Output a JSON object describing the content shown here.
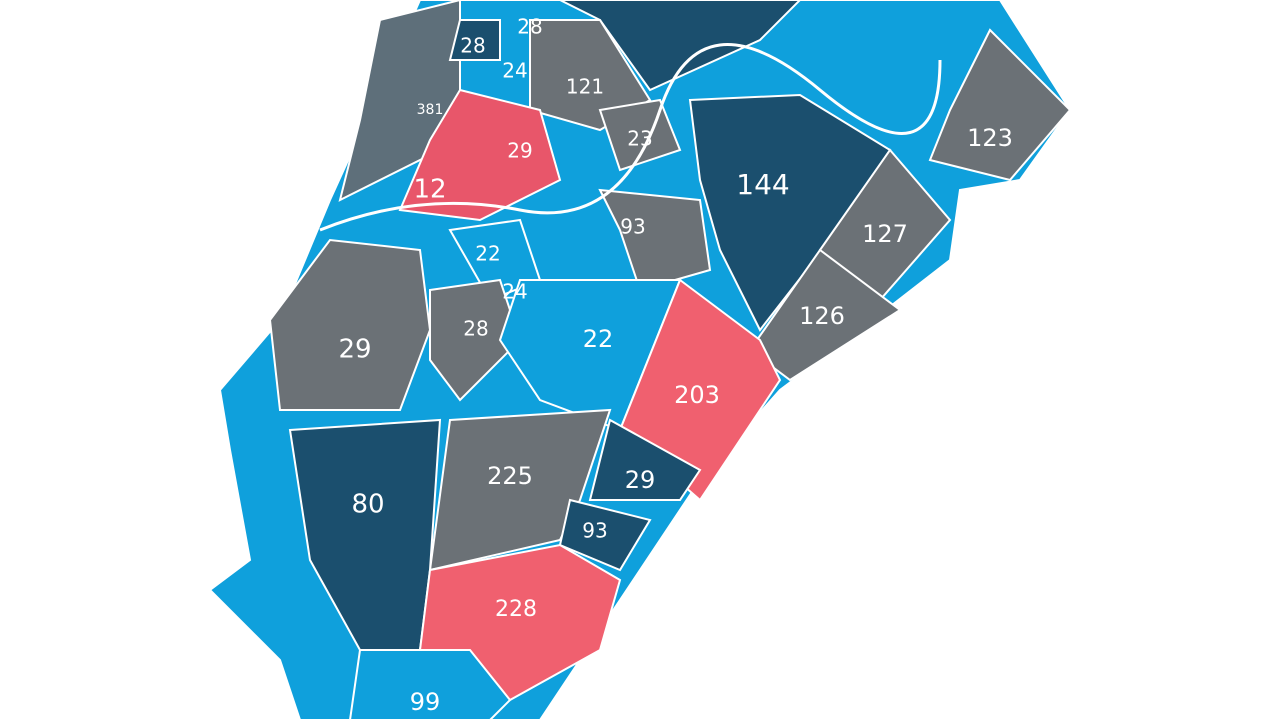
{
  "districts": [
    {
      "label": "28"
    },
    {
      "label": "28"
    },
    {
      "label": "24"
    },
    {
      "label": "121"
    },
    {
      "label": "381"
    },
    {
      "label": "23"
    },
    {
      "label": "29"
    },
    {
      "label": "12"
    },
    {
      "label": "144"
    },
    {
      "label": "123"
    },
    {
      "label": "127"
    },
    {
      "label": "126"
    },
    {
      "label": "93"
    },
    {
      "label": "22"
    },
    {
      "label": "24"
    },
    {
      "label": "29"
    },
    {
      "label": "28"
    },
    {
      "label": "22"
    },
    {
      "label": "203"
    },
    {
      "label": "225"
    },
    {
      "label": "29"
    },
    {
      "label": "80"
    },
    {
      "label": "93"
    },
    {
      "label": "228"
    },
    {
      "label": "99"
    }
  ]
}
